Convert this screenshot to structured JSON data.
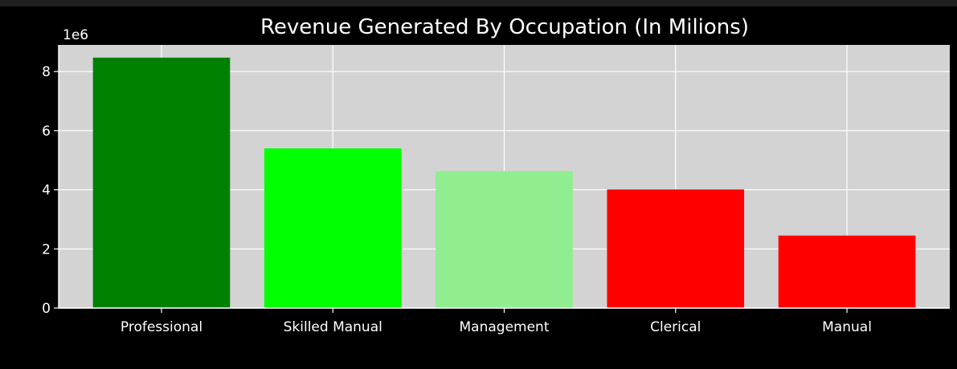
{
  "chart_data": {
    "type": "bar",
    "title": "Revenue Generated By Occupation (In Milions)",
    "xlabel": "",
    "ylabel": "",
    "y_scale_label": "1e6",
    "categories": [
      "Professional",
      "Skilled Manual",
      "Management",
      "Clerical",
      "Manual"
    ],
    "values": [
      8470000,
      5400000,
      4630000,
      4010000,
      2450000
    ],
    "bar_colors": [
      "#008000",
      "#00ff00",
      "#90ee90",
      "#ff0000",
      "#ff0000"
    ],
    "y_ticks": [
      0,
      2,
      4,
      6,
      8
    ],
    "ylim": [
      0,
      8900000
    ],
    "grid": true,
    "plot_background": "#d3d3d3",
    "figure_background": "#000000",
    "text_color": "#ffffff"
  }
}
